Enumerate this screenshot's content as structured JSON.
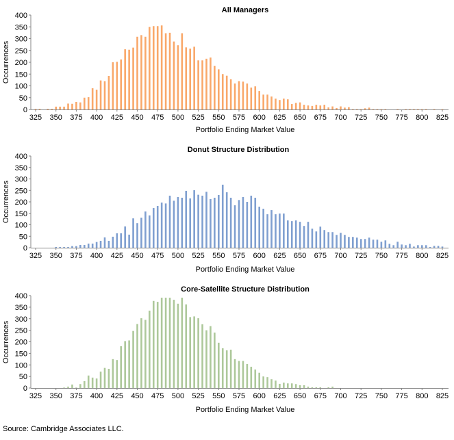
{
  "source": "Source: Cambridge Associates LLC.",
  "chart_data": [
    {
      "type": "bar",
      "title": "All Managers",
      "xlabel": "Portfolio Ending Market Value",
      "ylabel": "Occurrences",
      "color": "#F9A86A",
      "xlim": [
        325,
        825
      ],
      "ylim": [
        0,
        400
      ],
      "xticks": [
        325,
        350,
        375,
        400,
        425,
        450,
        475,
        500,
        525,
        550,
        575,
        600,
        625,
        650,
        675,
        700,
        725,
        750,
        775,
        800,
        825
      ],
      "yticks": [
        0,
        50,
        100,
        150,
        200,
        250,
        300,
        350,
        400
      ],
      "bin_start": 325,
      "bin_step": 5,
      "values": [
        3,
        3,
        0,
        3,
        3,
        12,
        12,
        12,
        25,
        24,
        32,
        30,
        50,
        52,
        90,
        84,
        123,
        120,
        142,
        200,
        202,
        212,
        255,
        253,
        262,
        308,
        315,
        308,
        350,
        353,
        353,
        356,
        323,
        325,
        288,
        272,
        323,
        263,
        258,
        266,
        208,
        208,
        215,
        220,
        185,
        170,
        150,
        143,
        128,
        110,
        120,
        118,
        110,
        93,
        98,
        78,
        63,
        63,
        55,
        46,
        40,
        46,
        43,
        23,
        28,
        30,
        20,
        17,
        15,
        20,
        17,
        20,
        9,
        13,
        6,
        13,
        8,
        10,
        2,
        2,
        2,
        5,
        8,
        2,
        2,
        2,
        2,
        0,
        0,
        2,
        0,
        2,
        2,
        2,
        2,
        2,
        2,
        0,
        2,
        0,
        2
      ]
    },
    {
      "type": "bar",
      "title": "Donut Structure Distribution",
      "xlabel": "Portfolio Ending Market Value",
      "ylabel": "Occurrences",
      "color": "#7F9FD0",
      "xlim": [
        325,
        825
      ],
      "ylim": [
        0,
        400
      ],
      "xticks": [
        325,
        350,
        375,
        400,
        425,
        450,
        475,
        500,
        525,
        550,
        575,
        600,
        625,
        650,
        675,
        700,
        725,
        750,
        775,
        800,
        825
      ],
      "yticks": [
        0,
        50,
        100,
        150,
        200,
        250,
        300,
        350,
        400
      ],
      "bin_start": 325,
      "bin_step": 5,
      "values": [
        0,
        0,
        0,
        0,
        0,
        3,
        3,
        3,
        3,
        7,
        7,
        12,
        12,
        18,
        18,
        25,
        30,
        45,
        30,
        48,
        63,
        63,
        93,
        57,
        128,
        107,
        131,
        158,
        141,
        173,
        182,
        197,
        193,
        227,
        205,
        221,
        218,
        248,
        215,
        251,
        231,
        227,
        244,
        212,
        218,
        230,
        275,
        242,
        218,
        185,
        208,
        221,
        200,
        227,
        218,
        179,
        170,
        146,
        164,
        146,
        149,
        149,
        119,
        116,
        119,
        113,
        95,
        113,
        83,
        71,
        92,
        77,
        68,
        68,
        56,
        65,
        56,
        47,
        47,
        44,
        38,
        38,
        44,
        35,
        35,
        26,
        32,
        17,
        11,
        26,
        14,
        11,
        17,
        5,
        11,
        11,
        11,
        3,
        8,
        8,
        5
      ]
    },
    {
      "type": "bar",
      "title": "Core-Satellite Structure Distribution",
      "xlabel": "Portfolio Ending Market Value",
      "ylabel": "Occurrences",
      "color": "#ADC89A",
      "xlim": [
        325,
        825
      ],
      "ylim": [
        0,
        400
      ],
      "xticks": [
        325,
        350,
        375,
        400,
        425,
        450,
        475,
        500,
        525,
        550,
        575,
        600,
        625,
        650,
        675,
        700,
        725,
        750,
        775,
        800,
        825
      ],
      "yticks": [
        0,
        50,
        100,
        150,
        200,
        250,
        300,
        350,
        400
      ],
      "bin_start": 325,
      "bin_step": 5,
      "values": [
        0,
        0,
        0,
        0,
        0,
        0,
        0,
        2,
        6,
        15,
        2,
        17,
        30,
        54,
        45,
        41,
        71,
        87,
        83,
        125,
        121,
        181,
        203,
        206,
        247,
        277,
        302,
        295,
        335,
        377,
        373,
        391,
        391,
        391,
        382,
        365,
        391,
        362,
        307,
        310,
        302,
        276,
        250,
        268,
        240,
        196,
        172,
        163,
        166,
        125,
        117,
        117,
        104,
        92,
        80,
        66,
        50,
        47,
        38,
        32,
        18,
        23,
        20,
        20,
        17,
        12,
        12,
        6,
        3,
        3,
        3,
        0,
        3,
        6,
        0,
        0,
        0,
        0,
        0,
        0,
        0,
        0,
        0,
        0,
        0,
        0,
        0,
        0,
        0,
        0,
        0,
        0,
        0,
        0,
        0,
        0,
        0,
        0,
        0,
        0,
        0
      ]
    }
  ]
}
